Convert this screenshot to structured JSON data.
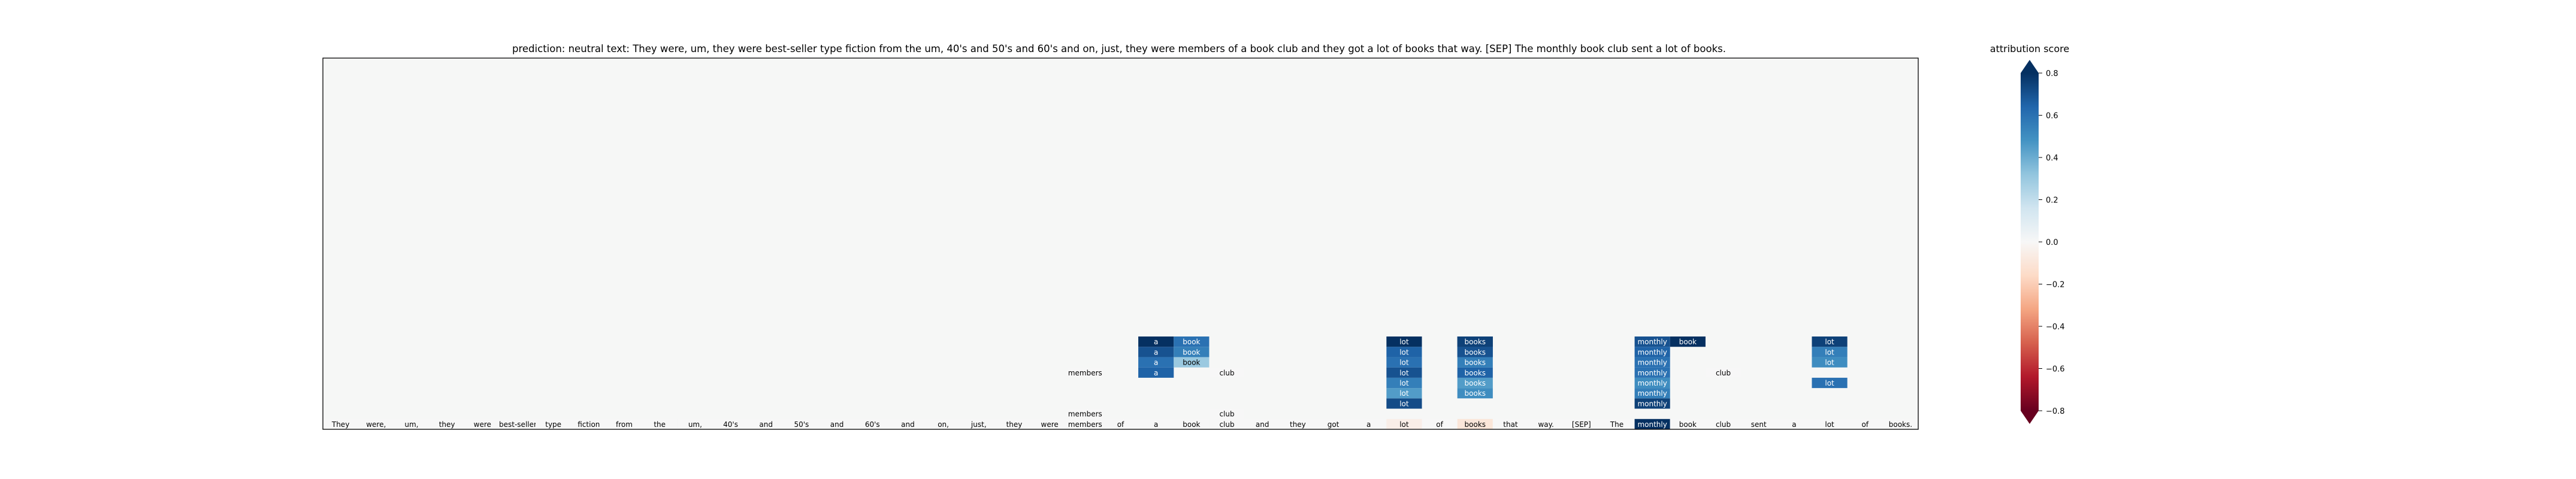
{
  "chart_data": {
    "type": "heatmap",
    "title": "prediction:  neutral     text:  They were, um, they were best-seller type fiction from the um, 40's and 50's and 60's and on, just, they were members of a book club and they got a lot of books that way. [SEP] The monthly book club sent a lot of books.",
    "tokens": [
      "They",
      "were,",
      "um,",
      "they",
      "were",
      "best-seller",
      "type",
      "fiction",
      "from",
      "the",
      "um,",
      "40's",
      "and",
      "50's",
      "and",
      "60's",
      "and",
      "on,",
      "just,",
      "they",
      "were",
      "members",
      "of",
      "a",
      "book",
      "club",
      "and",
      "they",
      "got",
      "a",
      "lot",
      "of",
      "books",
      "that",
      "way.",
      "[SEP]",
      "The",
      "monthly",
      "book",
      "club",
      "sent",
      "a",
      "lot",
      "of",
      "books."
    ],
    "layers": 36,
    "cells": [
      {
        "layer": 0,
        "token": "They",
        "text": "They",
        "value": 0.0
      },
      {
        "layer": 0,
        "token": "were,",
        "text": "were,",
        "value": 0.0
      },
      {
        "layer": 0,
        "token": "um,",
        "text": "um,",
        "value": 0.0
      },
      {
        "layer": 0,
        "token": "they",
        "text": "they",
        "value": 0.0
      },
      {
        "layer": 0,
        "token": "were",
        "text": "were",
        "value": 0.0
      },
      {
        "layer": 0,
        "token": "best-seller",
        "text": "best-seller",
        "value": 0.0
      },
      {
        "layer": 0,
        "token": "type",
        "text": "type",
        "value": 0.0
      },
      {
        "layer": 0,
        "token": "fiction",
        "text": "fiction",
        "value": 0.0
      },
      {
        "layer": 0,
        "token": "from",
        "text": "from",
        "value": 0.0
      },
      {
        "layer": 0,
        "token": "the",
        "text": "the",
        "value": 0.0
      },
      {
        "layer": 0,
        "token": "um,",
        "text": "um,",
        "value": 0.0
      },
      {
        "layer": 0,
        "token": "40's",
        "text": "40's",
        "value": 0.0
      },
      {
        "layer": 0,
        "token": "and",
        "text": "and",
        "value": 0.0
      },
      {
        "layer": 0,
        "token": "50's",
        "text": "50's",
        "value": 0.0
      },
      {
        "layer": 0,
        "token": "and",
        "text": "and",
        "value": 0.0
      },
      {
        "layer": 0,
        "token": "60's",
        "text": "60's",
        "value": 0.0
      },
      {
        "layer": 0,
        "token": "and",
        "text": "and",
        "value": 0.0
      },
      {
        "layer": 0,
        "token": "on,",
        "text": "on,",
        "value": 0.0
      },
      {
        "layer": 0,
        "token": "just,",
        "text": "just,",
        "value": 0.0
      },
      {
        "layer": 0,
        "token": "they",
        "text": "they",
        "value": 0.0
      },
      {
        "layer": 0,
        "token": "were",
        "text": "were",
        "value": 0.0
      },
      {
        "layer": 0,
        "token": "members",
        "text": "members",
        "value": 0.0
      },
      {
        "layer": 0,
        "token": "of",
        "text": "of",
        "value": 0.0
      },
      {
        "layer": 0,
        "token": "a",
        "text": "a",
        "value": 0.0
      },
      {
        "layer": 0,
        "token": "book",
        "text": "book",
        "value": 0.0
      },
      {
        "layer": 0,
        "token": "club",
        "text": "club",
        "value": 0.0
      },
      {
        "layer": 0,
        "token": "and",
        "text": "and",
        "value": 0.0
      },
      {
        "layer": 0,
        "token": "they",
        "text": "they",
        "value": 0.0
      },
      {
        "layer": 0,
        "token": "got",
        "text": "got",
        "value": 0.0
      },
      {
        "layer": 0,
        "token": "a",
        "text": "a",
        "value": 0.0
      },
      {
        "layer": 0,
        "token": "lot",
        "text": "lot",
        "value": -0.05
      },
      {
        "layer": 0,
        "token": "of",
        "text": "of",
        "value": 0.0
      },
      {
        "layer": 0,
        "token": "books",
        "text": "books",
        "value": -0.1
      },
      {
        "layer": 0,
        "token": "that",
        "text": "that",
        "value": 0.0
      },
      {
        "layer": 0,
        "token": "way.",
        "text": "way.",
        "value": 0.0
      },
      {
        "layer": 0,
        "token": "[SEP]",
        "text": "[SEP]",
        "value": 0.0
      },
      {
        "layer": 0,
        "token": "The",
        "text": "The",
        "value": 0.0
      },
      {
        "layer": 0,
        "token": "monthly",
        "text": "monthly",
        "value": 0.85
      },
      {
        "layer": 0,
        "token": "book",
        "text": "book",
        "value": 0.0
      },
      {
        "layer": 0,
        "token": "club",
        "text": "club",
        "value": 0.0
      },
      {
        "layer": 0,
        "token": "sent",
        "text": "sent",
        "value": 0.0
      },
      {
        "layer": 0,
        "token": "a",
        "text": "a",
        "value": 0.0
      },
      {
        "layer": 0,
        "token": "lot",
        "text": "lot",
        "value": 0.0
      },
      {
        "layer": 0,
        "token": "of",
        "text": "of",
        "value": 0.0
      },
      {
        "layer": 0,
        "token": "books.",
        "text": "books.",
        "value": 0.0
      },
      {
        "layer": 1,
        "token": "members",
        "text": "members",
        "value": 0.0
      },
      {
        "layer": 1,
        "token": "club",
        "text": "club",
        "value": 0.0
      },
      {
        "layer": 2,
        "token": "lot",
        "text": "lot",
        "value": 0.72
      },
      {
        "layer": 2,
        "token": "monthly",
        "text": "monthly",
        "value": 0.75
      },
      {
        "layer": 3,
        "token": "lot",
        "text": "lot",
        "value": 0.45
      },
      {
        "layer": 3,
        "token": "books",
        "text": "books",
        "value": 0.5
      },
      {
        "layer": 3,
        "token": "monthly",
        "text": "monthly",
        "value": 0.55
      },
      {
        "layer": 4,
        "token": "lot",
        "text": "lot",
        "value": 0.55
      },
      {
        "layer": 4,
        "token": "books",
        "text": "books",
        "value": 0.45
      },
      {
        "layer": 4,
        "token": "monthly",
        "text": "monthly",
        "value": 0.5
      },
      {
        "layer": 4,
        "token": "lot",
        "text": "lot",
        "value": 0.6
      },
      {
        "layer": 5,
        "token": "members",
        "text": "members",
        "value": 0.0
      },
      {
        "layer": 5,
        "token": "a",
        "text": "a",
        "value": 0.65
      },
      {
        "layer": 5,
        "token": "club",
        "text": "club",
        "value": 0.0
      },
      {
        "layer": 5,
        "token": "lot",
        "text": "lot",
        "value": 0.7
      },
      {
        "layer": 5,
        "token": "books",
        "text": "books",
        "value": 0.65
      },
      {
        "layer": 5,
        "token": "monthly",
        "text": "monthly",
        "value": 0.6
      },
      {
        "layer": 5,
        "token": "club",
        "text": "club",
        "value": 0.0
      },
      {
        "layer": 6,
        "token": "a",
        "text": "a",
        "value": 0.6
      },
      {
        "layer": 6,
        "token": "book",
        "text": "book",
        "value": 0.3
      },
      {
        "layer": 6,
        "token": "lot",
        "text": "lot",
        "value": 0.6
      },
      {
        "layer": 6,
        "token": "books",
        "text": "books",
        "value": 0.55
      },
      {
        "layer": 6,
        "token": "monthly",
        "text": "monthly",
        "value": 0.6
      },
      {
        "layer": 6,
        "token": "lot",
        "text": "lot",
        "value": 0.5
      },
      {
        "layer": 7,
        "token": "a",
        "text": "a",
        "value": 0.7
      },
      {
        "layer": 7,
        "token": "book",
        "text": "book",
        "value": 0.55
      },
      {
        "layer": 7,
        "token": "lot",
        "text": "lot",
        "value": 0.65
      },
      {
        "layer": 7,
        "token": "books",
        "text": "books",
        "value": 0.6
      },
      {
        "layer": 7,
        "token": "monthly",
        "text": "monthly",
        "value": 0.65
      },
      {
        "layer": 7,
        "token": "lot",
        "text": "lot",
        "value": 0.55
      },
      {
        "layer": 7,
        "token": "books",
        "text": "books",
        "value": 0.7
      },
      {
        "layer": 8,
        "token": "a",
        "text": "a",
        "value": 0.85
      },
      {
        "layer": 8,
        "token": "book",
        "text": "book",
        "value": 0.6
      },
      {
        "layer": 8,
        "token": "lot",
        "text": "lot",
        "value": 0.85
      },
      {
        "layer": 8,
        "token": "books",
        "text": "books",
        "value": 0.8
      },
      {
        "layer": 8,
        "token": "monthly",
        "text": "monthly",
        "value": 0.7
      },
      {
        "layer": 8,
        "token": "book",
        "text": "book",
        "value": 0.9
      },
      {
        "layer": 8,
        "token": "lot",
        "text": "lot",
        "value": 0.75
      },
      {
        "layer": 8,
        "token": "books",
        "text": "books",
        "value": 0.75
      }
    ],
    "colorbar": {
      "label": "attribution score",
      "range": [
        -0.8,
        0.8
      ],
      "ticks": [
        -0.8,
        -0.6,
        -0.4,
        -0.2,
        0.0,
        0.2,
        0.4,
        0.6,
        0.8
      ],
      "tick_labels": [
        "−0.8",
        "−0.6",
        "−0.4",
        "−0.2",
        "0.0",
        "0.2",
        "0.4",
        "0.6",
        "0.8"
      ],
      "colormap": "RdBu"
    }
  }
}
